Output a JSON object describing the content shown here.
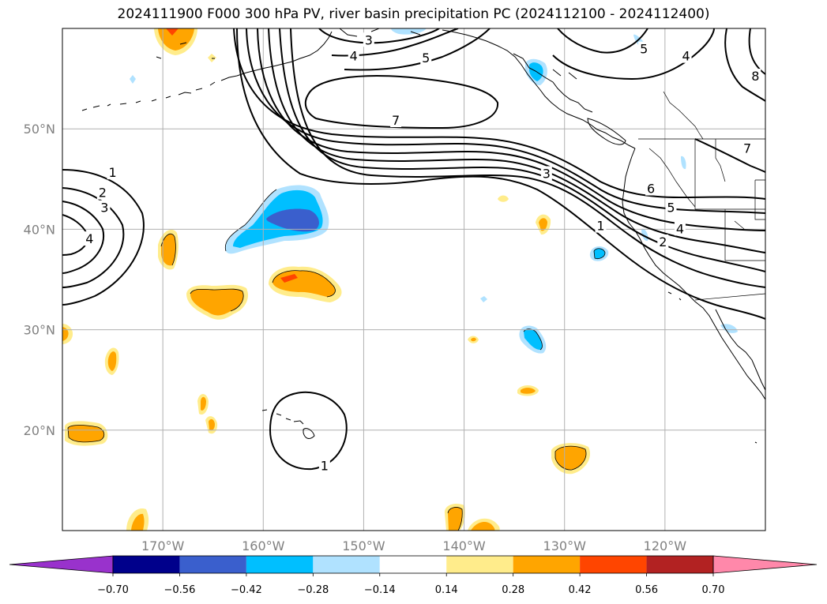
{
  "title": "2024111900 F000 300 hPa PV, river basin precipitation PC (2024112100 - 2024112400)",
  "map": {
    "lon_range": [
      -180,
      -110
    ],
    "lat_range": [
      10,
      60
    ],
    "lat_ticks": [
      {
        "value": 50,
        "label": "50°N"
      },
      {
        "value": 40,
        "label": "40°N"
      },
      {
        "value": 30,
        "label": "30°N"
      },
      {
        "value": 20,
        "label": "20°N"
      }
    ],
    "lon_ticks": [
      {
        "value": -170,
        "label": "170°W"
      },
      {
        "value": -160,
        "label": "160°W"
      },
      {
        "value": -150,
        "label": "150°W"
      },
      {
        "value": -140,
        "label": "140°W"
      },
      {
        "value": -130,
        "label": "130°W"
      },
      {
        "value": -120,
        "label": "120°W"
      }
    ],
    "grid": true,
    "contour_labels": [
      {
        "text": "3",
        "lon": -149.5,
        "lat": 58.8
      },
      {
        "text": "4",
        "lon": -151.0,
        "lat": 57.2
      },
      {
        "text": "5",
        "lon": -143.8,
        "lat": 57.0
      },
      {
        "text": "5",
        "lon": -122.1,
        "lat": 57.9
      },
      {
        "text": "4",
        "lon": -117.9,
        "lat": 57.2
      },
      {
        "text": "8",
        "lon": -111.0,
        "lat": 55.2
      },
      {
        "text": "7",
        "lon": -146.8,
        "lat": 50.8
      },
      {
        "text": "7",
        "lon": -111.8,
        "lat": 48.0
      },
      {
        "text": "3",
        "lon": -131.8,
        "lat": 45.5
      },
      {
        "text": "6",
        "lon": -121.4,
        "lat": 44.0
      },
      {
        "text": "5",
        "lon": -119.4,
        "lat": 42.1
      },
      {
        "text": "4",
        "lon": -118.5,
        "lat": 40.0
      },
      {
        "text": "1",
        "lon": -126.4,
        "lat": 40.3
      },
      {
        "text": "2",
        "lon": -120.2,
        "lat": 38.7
      },
      {
        "text": "1",
        "lon": -175.0,
        "lat": 45.6
      },
      {
        "text": "2",
        "lon": -176.0,
        "lat": 43.6
      },
      {
        "text": "3",
        "lon": -175.8,
        "lat": 42.1
      },
      {
        "text": "4",
        "lon": -177.3,
        "lat": 39.0
      },
      {
        "text": "1",
        "lon": -153.9,
        "lat": 16.4
      }
    ]
  },
  "colorbar": {
    "levels": [
      -0.7,
      -0.56,
      -0.42,
      -0.28,
      -0.14,
      0.14,
      0.28,
      0.42,
      0.56,
      0.7
    ],
    "labels": [
      "−0.70",
      "−0.56",
      "−0.42",
      "−0.28",
      "−0.14",
      "0.14",
      "0.28",
      "0.42",
      "0.56",
      "0.70"
    ],
    "colors": [
      "#9932cc",
      "#00008b",
      "#3a5fcd",
      "#00bfff",
      "#b0e2ff",
      "#ffffff",
      "#ffec8b",
      "#ffa500",
      "#ff4500",
      "#b22222",
      "#ff88aa"
    ],
    "extend": "both"
  }
}
